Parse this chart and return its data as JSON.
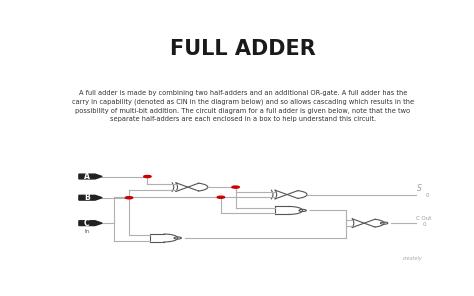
{
  "title": "FULL ADDER",
  "bg_color": "#ffffff",
  "title_color": "#1a1a1a",
  "line_color": "#b0b0b0",
  "gate_color": "#555555",
  "dot_color": "#cc0000",
  "input_bg": "#222222",
  "input_text": "#ffffff",
  "label_color": "#999999",
  "description_line1": "A full adder is made by combining two half-adders and an additional OR-gate. A full adder has the",
  "description_line2": "carry in capability (denoted as CIN in the diagram below) and so allows cascading which results in the",
  "description_line3": "possibility of multi-bit addition. The circuit diagram for a full adder is given below, note that the two",
  "description_line4": "separate half-adders are each enclosed in a box to help understand this circuit.",
  "creately_color": "#aaaaaa"
}
